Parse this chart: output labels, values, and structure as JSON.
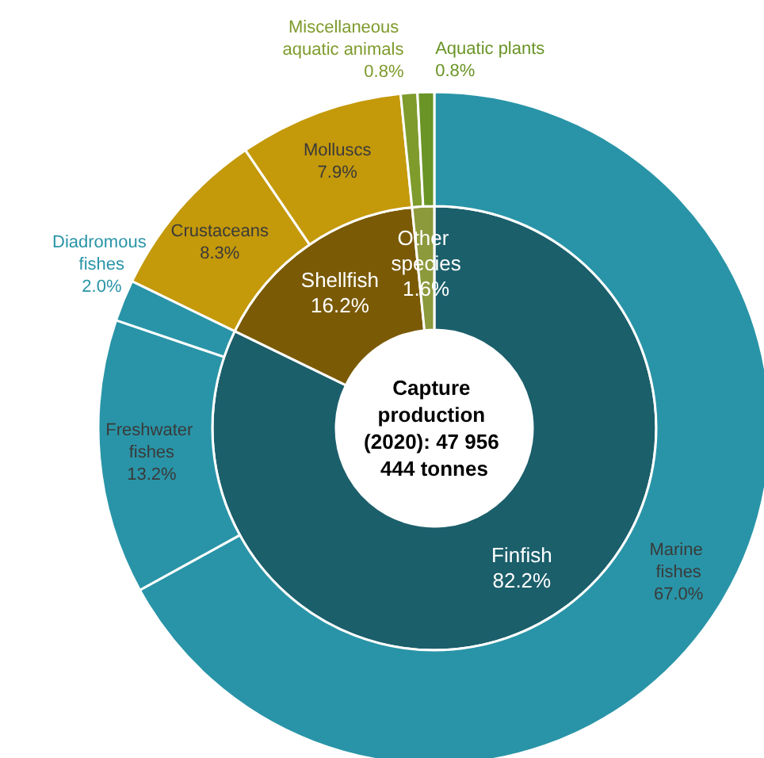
{
  "chart_data": [
    {
      "type": "donut",
      "categories": [
        "Finfish",
        "Shellfish",
        "Other species"
      ],
      "values": [
        82.2,
        16.2,
        1.6
      ],
      "colors": [
        "#1b5f6b",
        "#7a5a04",
        "#8c9a3c"
      ],
      "value_labels": [
        "82.2%",
        "16.2%",
        "1.6%"
      ],
      "annotations": [
        "Capture production (2020): 47 956 444 tonnes"
      ]
    },
    {
      "type": "donut",
      "categories": [
        "Marine fishes",
        "Freshwater fishes",
        "Diadromous fishes",
        "Crustaceans",
        "Molluscs",
        "Miscellaneous aquatic animals",
        "Aquatic plants"
      ],
      "values": [
        67.0,
        13.2,
        2.0,
        8.3,
        7.9,
        0.8,
        0.8
      ],
      "colors": [
        "#2994a7",
        "#2994a7",
        "#2994a7",
        "#c4990a",
        "#c4990a",
        "#7e9b2c",
        "#6a9426"
      ],
      "value_labels": [
        "67.0%",
        "13.2%",
        "2.0%",
        "8.3%",
        "7.9%",
        "0.8%",
        "0.8%"
      ]
    }
  ]
}
